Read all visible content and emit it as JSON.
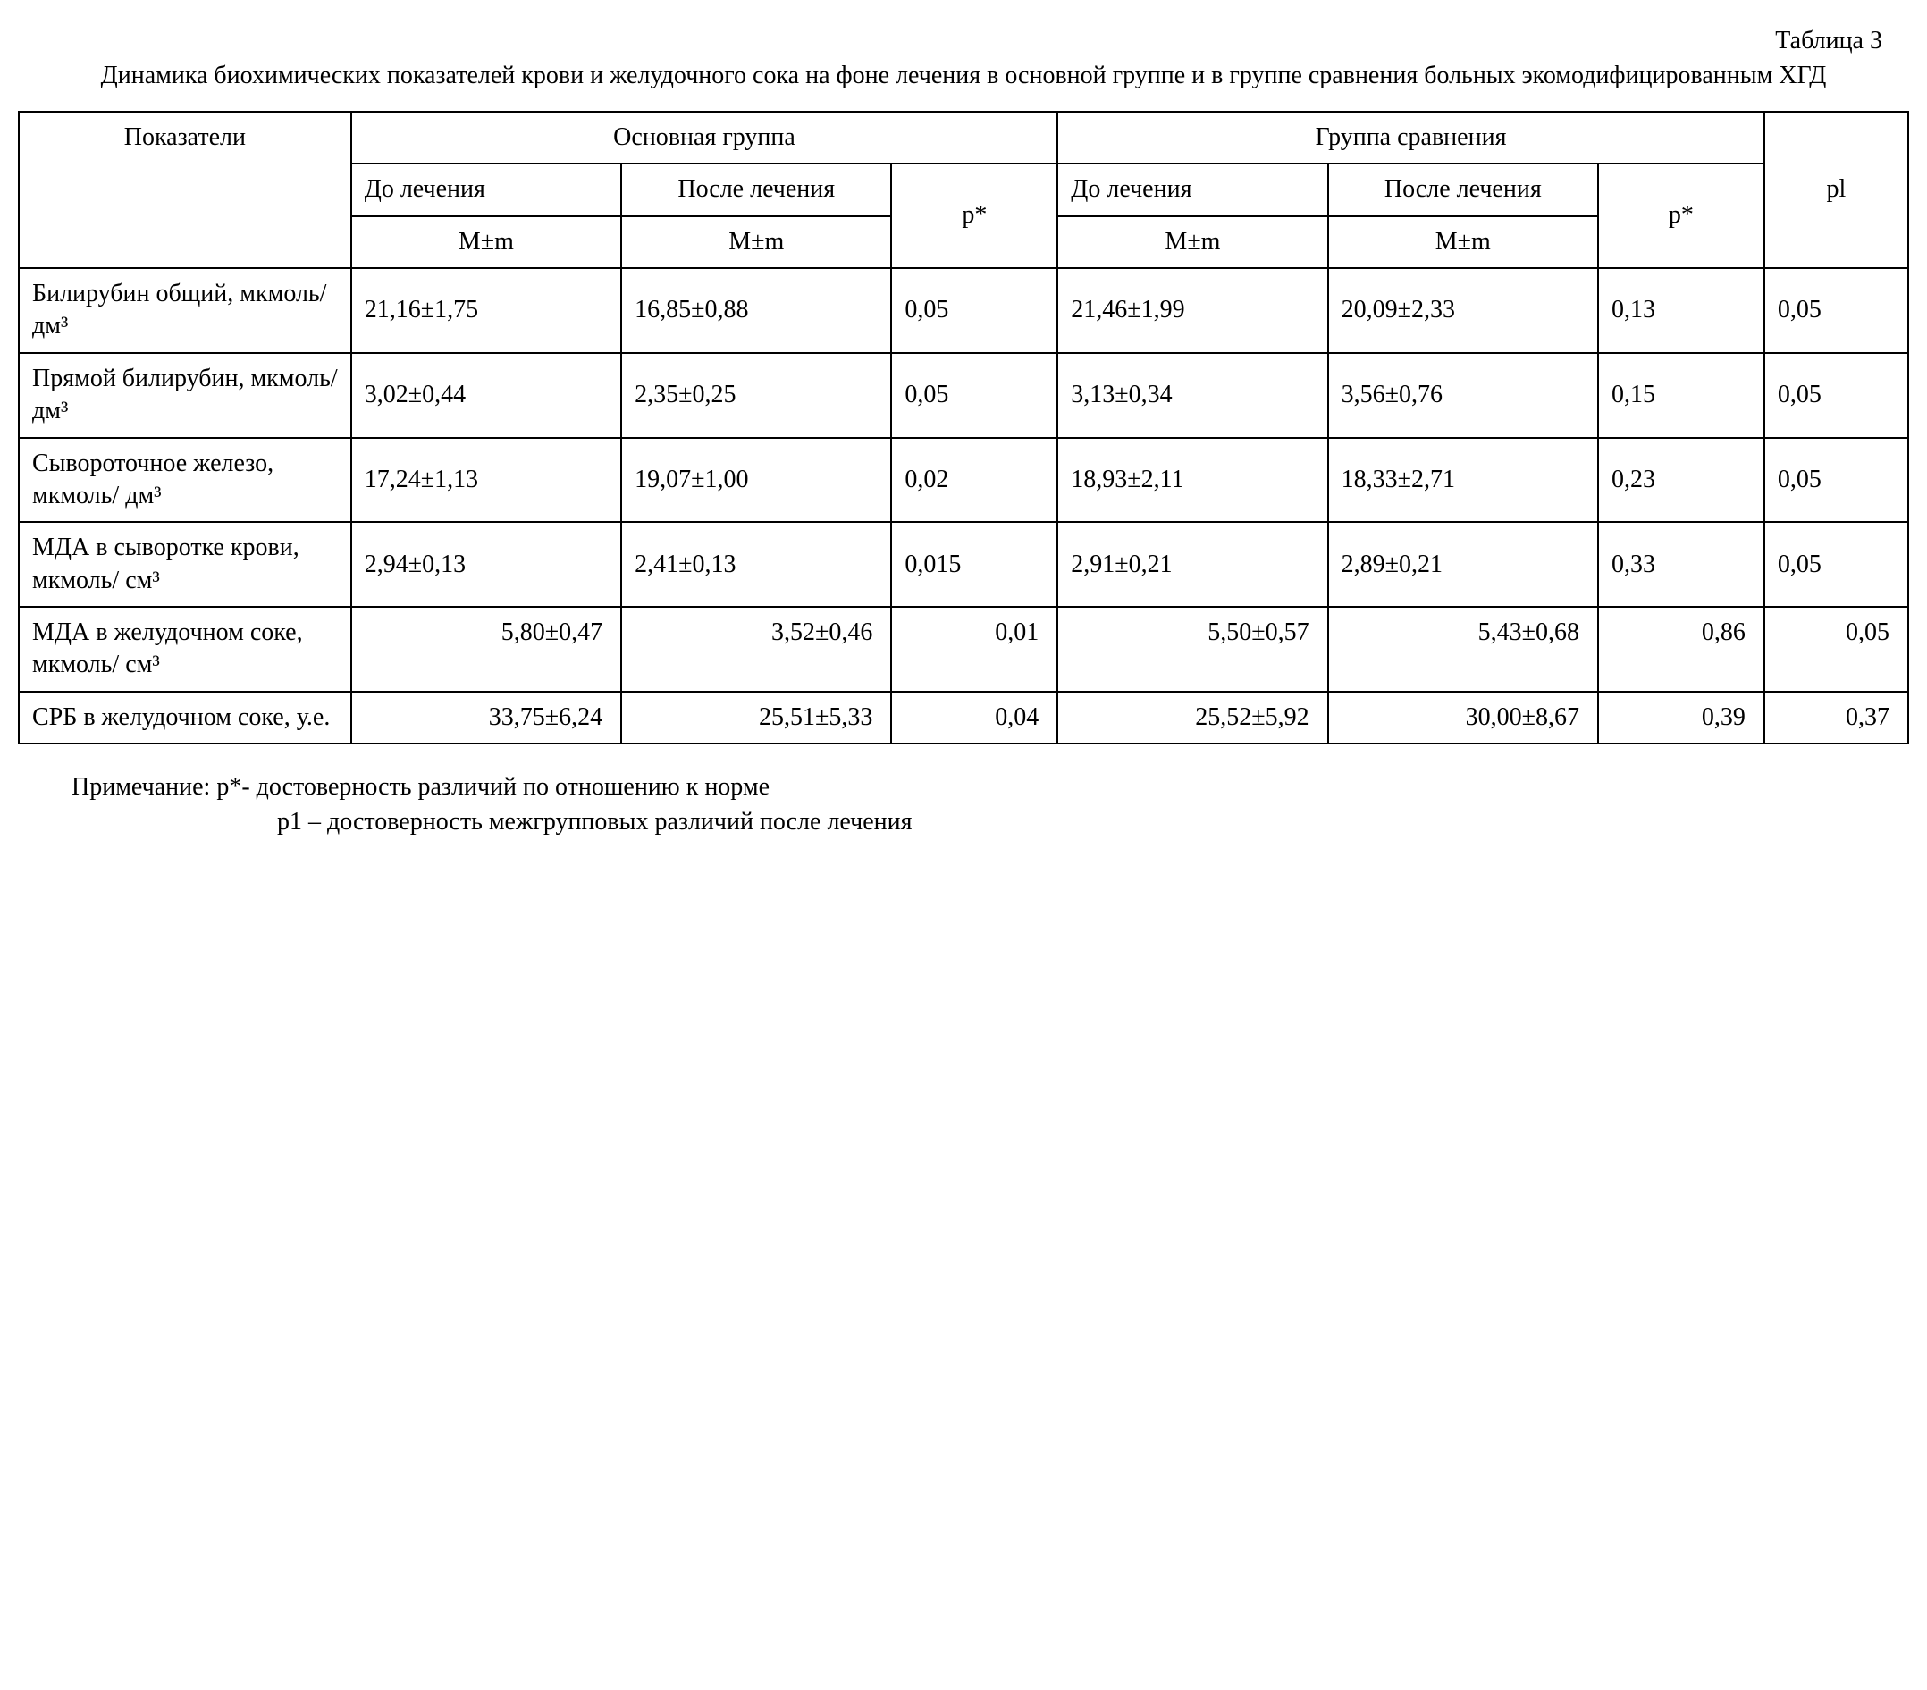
{
  "tableLabel": "Таблица 3",
  "caption": "Динамика биохимических показателей крови и желудочного сока на фоне лечения в основной группе и в группе сравнения больных экомодифицированным ХГД",
  "header": {
    "indicators": "Показатели",
    "mainGroup": "Основная группа",
    "compGroup": "Группа сравнения",
    "before": "До лечения",
    "after": "После лечения",
    "pstar": "р*",
    "mm": "M±m",
    "p1": "pl"
  },
  "rows": [
    {
      "label": "Билирубин общий, мкмоль/ дм³",
      "mBefore": "21,16±1,75",
      "mAfter": "16,85±0,88",
      "mP": "0,05",
      "cBefore": "21,46±1,99",
      "cAfter": "20,09±2,33",
      "cP": "0,13",
      "p1": "0,05",
      "topAlign": false
    },
    {
      "label": "Прямой билирубин, мкмоль/ дм³",
      "mBefore": "3,02±0,44",
      "mAfter": "2,35±0,25",
      "mP": "0,05",
      "cBefore": "3,13±0,34",
      "cAfter": "3,56±0,76",
      "cP": "0,15",
      "p1": "0,05",
      "topAlign": false
    },
    {
      "label": "Сывороточное железо, мкмоль/ дм³",
      "mBefore": "17,24±1,13",
      "mAfter": "19,07±1,00",
      "mP": "0,02",
      "cBefore": "18,93±2,11",
      "cAfter": "18,33±2,71",
      "cP": "0,23",
      "p1": "0,05",
      "topAlign": false
    },
    {
      "label": "МДА в сыворотке крови, мкмоль/ см³",
      "mBefore": "2,94±0,13",
      "mAfter": "2,41±0,13",
      "mP": "0,015",
      "cBefore": "2,91±0,21",
      "cAfter": "2,89±0,21",
      "cP": "0,33",
      "p1": "0,05",
      "topAlign": false
    },
    {
      "label": "МДА в желудочном соке, мкмоль/ см³",
      "mBefore": "5,80±0,47",
      "mAfter": "3,52±0,46",
      "mP": "0,01",
      "cBefore": "5,50±0,57",
      "cAfter": "5,43±0,68",
      "cP": "0,86",
      "p1": "0,05",
      "topAlign": true
    },
    {
      "label": "СРБ в желудочном соке, у.е.",
      "mBefore": "33,75±6,24",
      "mAfter": "25,51±5,33",
      "mP": "0,04",
      "cBefore": "25,52±5,92",
      "cAfter": "30,00±8,67",
      "cP": "0,39",
      "p1": "0,37",
      "topAlign": true
    }
  ],
  "note": {
    "line1": "Примечание: р*- достоверность различий по отношению к норме",
    "line2": "р1 – достоверность межгрупповых различий после лечения"
  },
  "style": {
    "font": "Times New Roman",
    "fontSizePx": 28,
    "textColor": "#000000",
    "bgColor": "#ffffff",
    "borderColor": "#000000",
    "borderWidthPx": 2
  }
}
